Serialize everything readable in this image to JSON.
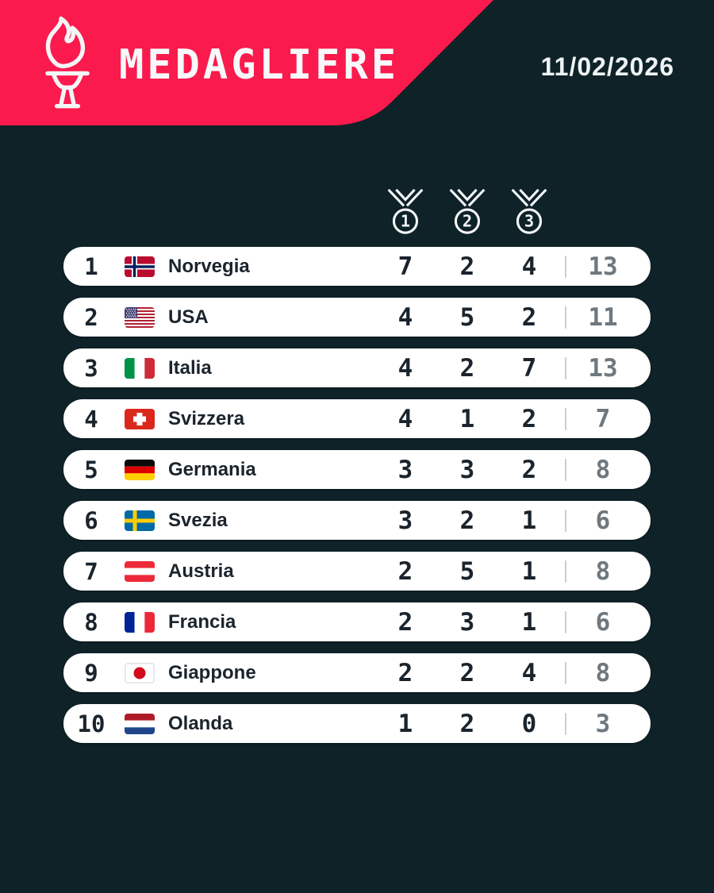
{
  "header": {
    "title": "MEDAGLIERE",
    "date": "11/02/2026"
  },
  "colors": {
    "banner_pink": "#FB1A4D",
    "background_dark": "#0E2228",
    "row_background": "#FFFFFF",
    "text_dark": "#1B242D",
    "total_gray": "#6F787E",
    "icon_white": "#F3F5F6"
  },
  "icons": {
    "logo": "torch-icon",
    "columns": [
      "gold-medal-icon",
      "silver-medal-icon",
      "bronze-medal-icon"
    ]
  },
  "medal_columns": [
    {
      "icon": "gold-medal-icon",
      "label": "1"
    },
    {
      "icon": "silver-medal-icon",
      "label": "2"
    },
    {
      "icon": "bronze-medal-icon",
      "label": "3"
    }
  ],
  "table": {
    "rows": [
      {
        "rank": "1",
        "country": "Norvegia",
        "flag": "norway",
        "gold": "7",
        "silver": "2",
        "bronze": "4",
        "total": "13"
      },
      {
        "rank": "2",
        "country": "USA",
        "flag": "usa",
        "gold": "4",
        "silver": "5",
        "bronze": "2",
        "total": "11"
      },
      {
        "rank": "3",
        "country": "Italia",
        "flag": "italy",
        "gold": "4",
        "silver": "2",
        "bronze": "7",
        "total": "13"
      },
      {
        "rank": "4",
        "country": "Svizzera",
        "flag": "switzerland",
        "gold": "4",
        "silver": "1",
        "bronze": "2",
        "total": "7"
      },
      {
        "rank": "5",
        "country": "Germania",
        "flag": "germany",
        "gold": "3",
        "silver": "3",
        "bronze": "2",
        "total": "8"
      },
      {
        "rank": "6",
        "country": "Svezia",
        "flag": "sweden",
        "gold": "3",
        "silver": "2",
        "bronze": "1",
        "total": "6"
      },
      {
        "rank": "7",
        "country": "Austria",
        "flag": "austria",
        "gold": "2",
        "silver": "5",
        "bronze": "1",
        "total": "8"
      },
      {
        "rank": "8",
        "country": "Francia",
        "flag": "france",
        "gold": "2",
        "silver": "3",
        "bronze": "1",
        "total": "6"
      },
      {
        "rank": "9",
        "country": "Giappone",
        "flag": "japan",
        "gold": "2",
        "silver": "2",
        "bronze": "4",
        "total": "8"
      },
      {
        "rank": "10",
        "country": "Olanda",
        "flag": "netherlands",
        "gold": "1",
        "silver": "2",
        "bronze": "0",
        "total": "3"
      }
    ]
  },
  "chart_data": {
    "type": "table",
    "title": "MEDAGLIERE",
    "date": "11/02/2026",
    "columns": [
      "rank",
      "country",
      "gold",
      "silver",
      "bronze",
      "total"
    ],
    "rows": [
      [
        1,
        "Norvegia",
        7,
        2,
        4,
        13
      ],
      [
        2,
        "USA",
        4,
        5,
        2,
        11
      ],
      [
        3,
        "Italia",
        4,
        2,
        7,
        13
      ],
      [
        4,
        "Svizzera",
        4,
        1,
        2,
        7
      ],
      [
        5,
        "Germania",
        3,
        3,
        2,
        8
      ],
      [
        6,
        "Svezia",
        3,
        2,
        1,
        6
      ],
      [
        7,
        "Austria",
        2,
        5,
        1,
        8
      ],
      [
        8,
        "Francia",
        2,
        3,
        1,
        6
      ],
      [
        9,
        "Giappone",
        2,
        2,
        4,
        8
      ],
      [
        10,
        "Olanda",
        1,
        2,
        0,
        3
      ]
    ]
  }
}
